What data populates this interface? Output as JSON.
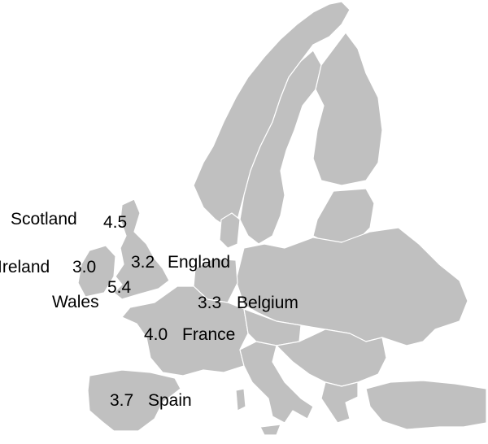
{
  "map": {
    "land_color": "#c0c0c0",
    "border_color": "#ffffff",
    "background": "#ffffff",
    "labels": {
      "scotland": {
        "name": "Scotland",
        "value": "4.5"
      },
      "ireland": {
        "name": "Ireland",
        "value": "3.0"
      },
      "england": {
        "name": "England",
        "value": "3.2"
      },
      "wales": {
        "name": "Wales",
        "value": "5.4"
      },
      "belgium": {
        "name": "Belgium",
        "value": "3.3"
      },
      "france": {
        "name": "France",
        "value": "4.0"
      },
      "spain": {
        "name": "Spain",
        "value": "3.7"
      }
    }
  }
}
